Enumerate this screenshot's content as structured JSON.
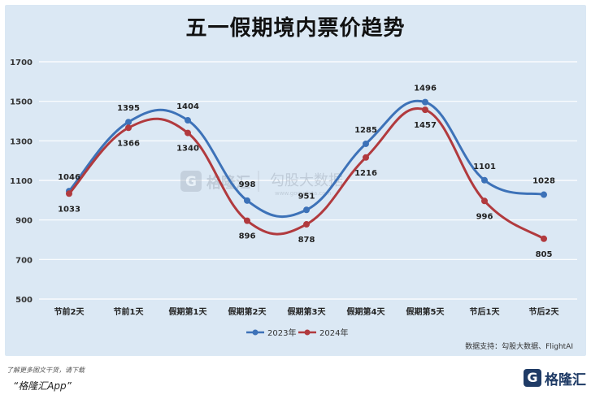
{
  "title": "五一假期境内票价趋势",
  "source_note": "数据支持：勾股大数据、FlightAI",
  "footer": {
    "note": "了解更多图文干货，请下载",
    "app": "“格隆汇App”",
    "logo_text": "格隆汇",
    "logo_mark": "G"
  },
  "watermark": {
    "brand": "格隆汇",
    "brand2": "勾股大数据",
    "url": "www.gogudata.com"
  },
  "colors": {
    "background": "#dbe8f4",
    "series_2023": "#3d72b8",
    "series_2024": "#b13a3e",
    "grid": "#ffffff"
  },
  "chart_data": {
    "type": "line",
    "title": "五一假期境内票价趋势",
    "categories": [
      "节前2天",
      "节前1天",
      "假期第1天",
      "假期第2天",
      "假期第3天",
      "假期第4天",
      "假期第5天",
      "节后1天",
      "节后2天"
    ],
    "series": [
      {
        "name": "2023年",
        "values": [
          1046,
          1395,
          1404,
          998,
          951,
          1285,
          1496,
          1101,
          1028
        ]
      },
      {
        "name": "2024年",
        "values": [
          1033,
          1366,
          1340,
          896,
          878,
          1216,
          1457,
          996,
          805
        ]
      }
    ],
    "ylim": [
      500,
      1700
    ],
    "yticks": [
      500,
      700,
      900,
      1100,
      1300,
      1500,
      1700
    ],
    "grid": true,
    "legend": "bottom",
    "smooth": true,
    "data_labels": true
  }
}
